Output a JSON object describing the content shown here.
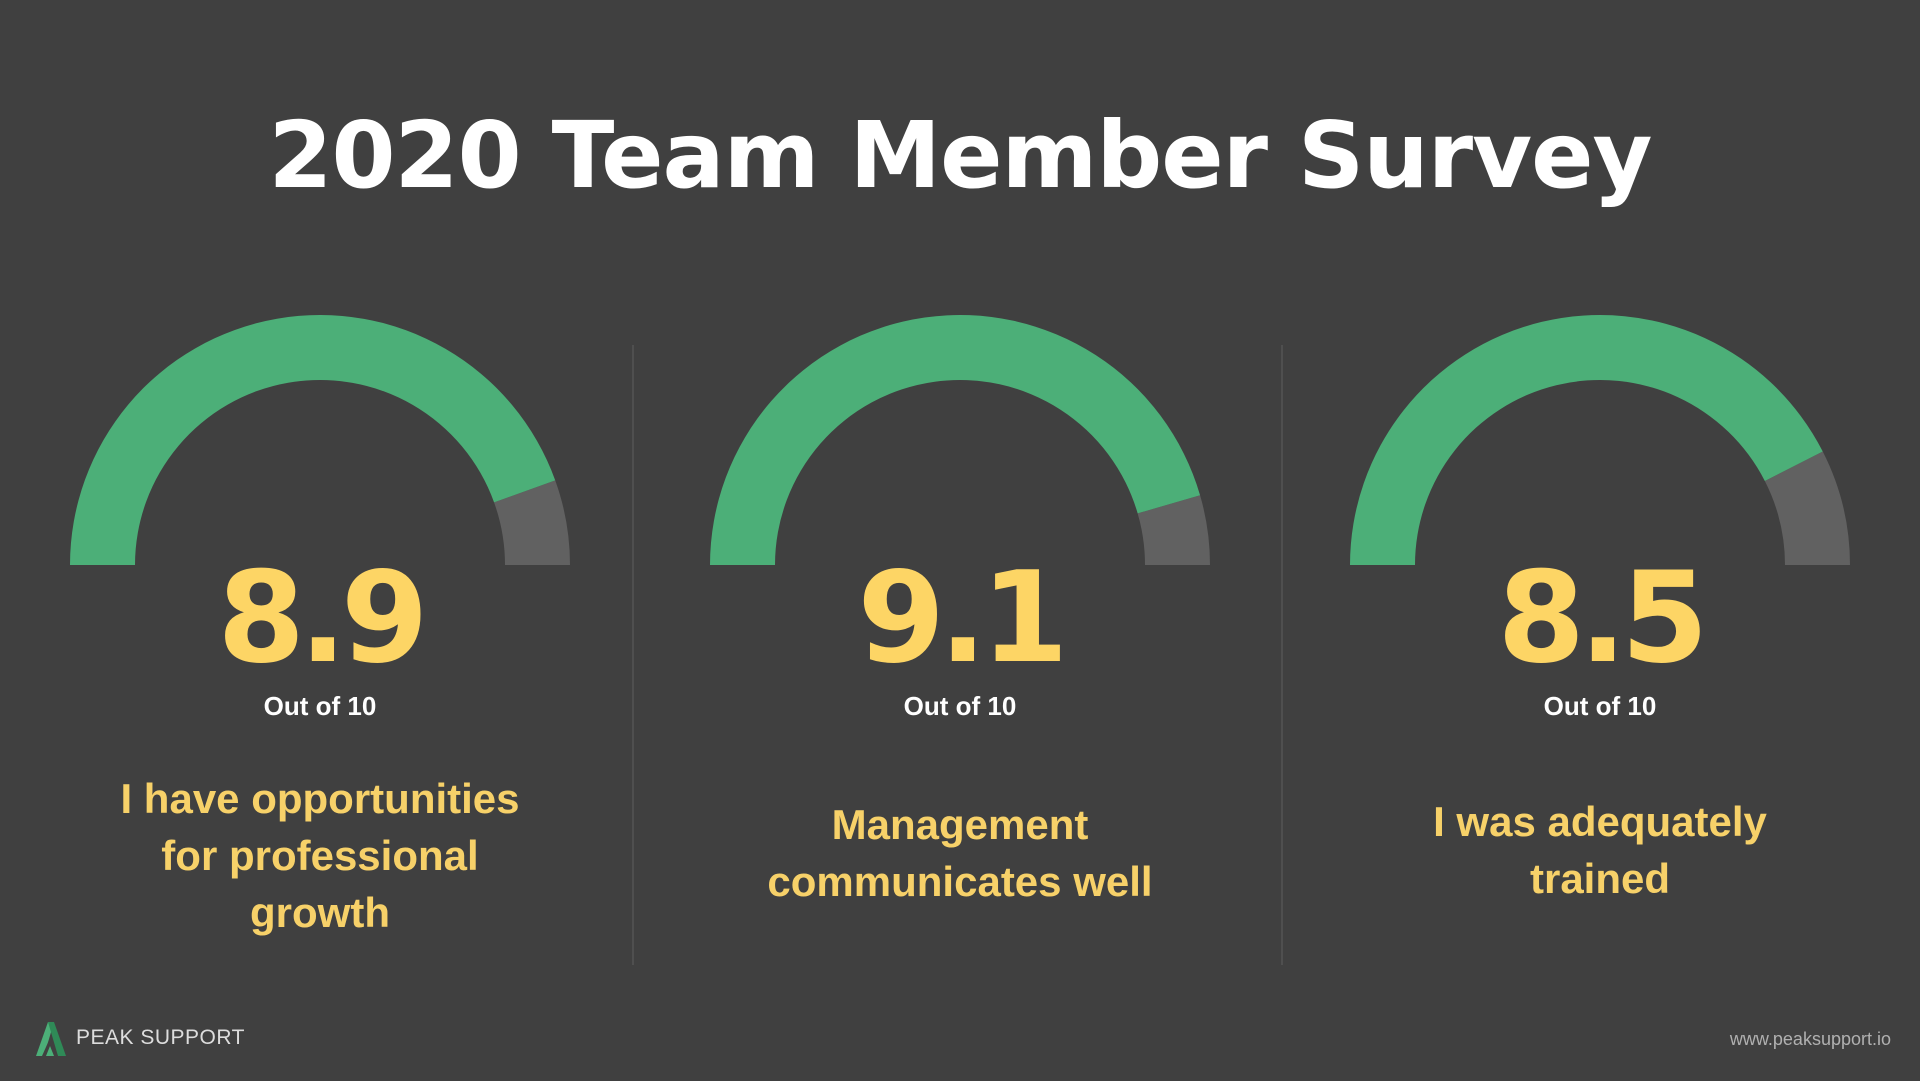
{
  "title": "2020 Team Member Survey",
  "colors": {
    "background": "#404040",
    "gauge_fill": "#4caf78",
    "gauge_track": "#616161",
    "score": "#fdd565",
    "question": "#f7d169"
  },
  "chart_data": [
    {
      "type": "gauge",
      "value": 8.9,
      "max": 10,
      "value_label": "8.9",
      "unit_label": "Out of 10",
      "caption_lines": [
        "I have opportunities",
        "for professional",
        "growth"
      ]
    },
    {
      "type": "gauge",
      "value": 9.1,
      "max": 10,
      "value_label": "9.1",
      "unit_label": "Out of 10",
      "caption_lines": [
        "Management",
        "communicates well"
      ]
    },
    {
      "type": "gauge",
      "value": 8.5,
      "max": 10,
      "value_label": "8.5",
      "unit_label": "Out of 10",
      "caption_lines": [
        "I was adequately",
        "trained"
      ]
    }
  ],
  "footer": {
    "logo_icon": "peak-triangle-icon",
    "brand": "PEAK SUPPORT",
    "url": "www.peaksupport.io"
  }
}
